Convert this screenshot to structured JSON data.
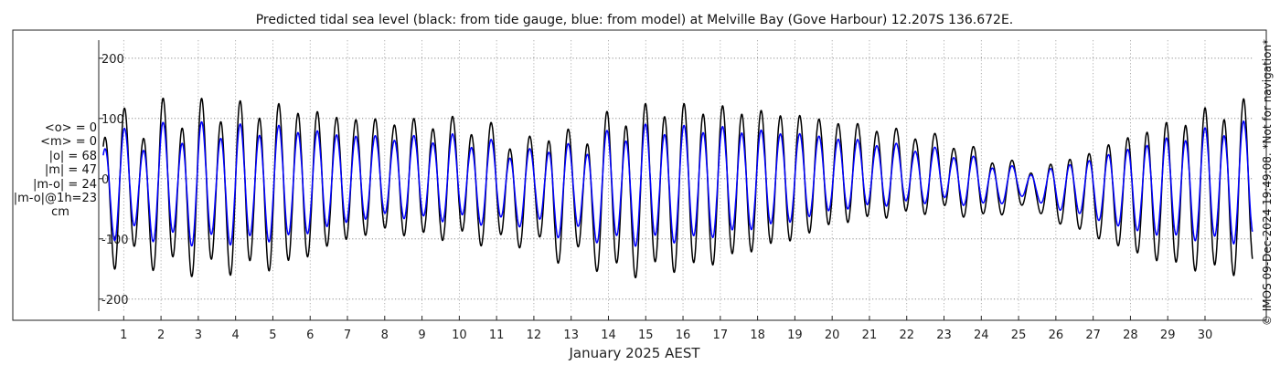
{
  "chart_data": {
    "type": "line",
    "title": "Predicted tidal sea level (black: from tide gauge, blue: from model) at Melville Bay (Gove Harbour) 12.207S 136.672E.",
    "xlabel": "January 2025 AEST",
    "ylabel": "",
    "ylim": [
      -220,
      230
    ],
    "yticks": [
      -200,
      -100,
      0,
      100,
      200
    ],
    "xlim": [
      0.33,
      31.3
    ],
    "xticks": [
      "1",
      "2",
      "3",
      "4",
      "5",
      "6",
      "7",
      "8",
      "9",
      "10",
      "11",
      "12",
      "13",
      "14",
      "15",
      "16",
      "17",
      "18",
      "19",
      "20",
      "21",
      "22",
      "23",
      "24",
      "25",
      "26",
      "27",
      "28",
      "29",
      "30"
    ],
    "grid": "dotted",
    "units": "cm",
    "series": [
      {
        "name": "tide gauge",
        "color": "#000000",
        "x_day": [
          0.45,
          0.78,
          1.5,
          2.0,
          2.5,
          3.0,
          3.5,
          4.0,
          4.5,
          5.0,
          6.0,
          7.0,
          8.0,
          9.0,
          10.0,
          11.0,
          12.0,
          12.5,
          13.0,
          14.0,
          14.5,
          15.0,
          15.5,
          16.0,
          17.0,
          18.0,
          19.0,
          20.0,
          21.0,
          22.0,
          23.0,
          24.0,
          24.5,
          25.0,
          25.5,
          26.0,
          26.5,
          27.0,
          28.0,
          29.0,
          29.5,
          30.0,
          30.5,
          31.0
        ],
        "high_cm": [
          80,
          105,
          85,
          115,
          100,
          120,
          105,
          122,
          105,
          120,
          110,
          100,
          95,
          92,
          92,
          75,
          50,
          88,
          60,
          95,
          105,
          110,
          115,
          115,
          115,
          110,
          105,
          95,
          85,
          75,
          65,
          40,
          30,
          20,
          12,
          25,
          35,
          45,
          70,
          90,
          95,
          108,
          110,
          118
        ],
        "low_cm": [
          -100,
          -140,
          -120,
          -150,
          -140,
          -155,
          -140,
          -155,
          -140,
          -150,
          -125,
          -100,
          -85,
          -95,
          -95,
          -105,
          -100,
          -130,
          -120,
          -150,
          -155,
          -150,
          -145,
          -150,
          -135,
          -115,
          -100,
          -75,
          -65,
          -58,
          -50,
          -65,
          -55,
          -48,
          -50,
          -75,
          -80,
          -95,
          -120,
          -140,
          -145,
          -150,
          -152,
          -150
        ],
        "diurnal_cm": [
          18,
          22,
          25,
          25,
          24,
          20,
          18,
          15,
          12,
          8,
          5,
          0,
          -5,
          -10,
          -15,
          -20,
          -22,
          -22,
          -22,
          -22,
          -21,
          -18,
          -15,
          -12,
          -8,
          -5,
          -2,
          2,
          5,
          8,
          10,
          10,
          10,
          8,
          6,
          2,
          0,
          -2,
          0,
          5,
          8,
          12,
          15,
          18
        ],
        "diurnal_phase_cycles": 0.6
      },
      {
        "name": "model",
        "color": "#0000ff",
        "x_day": [
          0.45,
          0.78,
          1.5,
          2.0,
          2.5,
          3.0,
          3.5,
          4.0,
          4.5,
          5.0,
          6.0,
          7.0,
          8.0,
          9.0,
          10.0,
          11.0,
          12.0,
          12.5,
          13.0,
          14.0,
          14.5,
          15.0,
          15.5,
          16.0,
          17.0,
          18.0,
          19.0,
          20.0,
          21.0,
          22.0,
          23.0,
          24.0,
          24.5,
          25.0,
          25.5,
          26.0,
          26.5,
          27.0,
          28.0,
          29.0,
          29.5,
          30.0,
          30.5,
          31.0
        ],
        "high_cm": [
          58,
          75,
          60,
          80,
          70,
          85,
          75,
          85,
          75,
          85,
          78,
          72,
          68,
          66,
          66,
          52,
          35,
          62,
          42,
          68,
          75,
          80,
          82,
          82,
          82,
          78,
          75,
          68,
          60,
          52,
          45,
          28,
          20,
          14,
          8,
          18,
          25,
          32,
          50,
          65,
          68,
          78,
          80,
          85
        ],
        "low_cm": [
          -70,
          -95,
          -85,
          -100,
          -98,
          -105,
          -98,
          -105,
          -98,
          -102,
          -88,
          -72,
          -60,
          -66,
          -66,
          -72,
          -70,
          -90,
          -85,
          -102,
          -105,
          -102,
          -100,
          -102,
          -92,
          -80,
          -70,
          -52,
          -45,
          -40,
          -35,
          -45,
          -38,
          -32,
          -35,
          -52,
          -55,
          -66,
          -85,
          -95,
          -98,
          -100,
          -102,
          -100
        ],
        "diurnal_cm": [
          13,
          16,
          18,
          18,
          17,
          14,
          13,
          11,
          8,
          6,
          4,
          0,
          -4,
          -7,
          -11,
          -14,
          -16,
          -16,
          -16,
          -16,
          -15,
          -13,
          -11,
          -8,
          -6,
          -4,
          -1,
          1,
          4,
          6,
          7,
          7,
          7,
          6,
          4,
          1,
          0,
          -1,
          0,
          4,
          6,
          8,
          11,
          13
        ],
        "diurnal_phase_cycles": 0.6
      }
    ],
    "semidiurnal_period_days": 0.5175,
    "phase_first_high_day": 0.5,
    "diurnal_period_days": 1.035
  },
  "stats": {
    "lines": [
      "<o> = 0",
      "<m> = 0",
      "|o| = 68",
      "|m| = 47",
      "|m-o| = 24",
      "|m-o|@1h=23"
    ],
    "unit": "cm"
  },
  "credit": "© IMOS 09-Dec-2024 19:49:08. *Not for navigation*"
}
